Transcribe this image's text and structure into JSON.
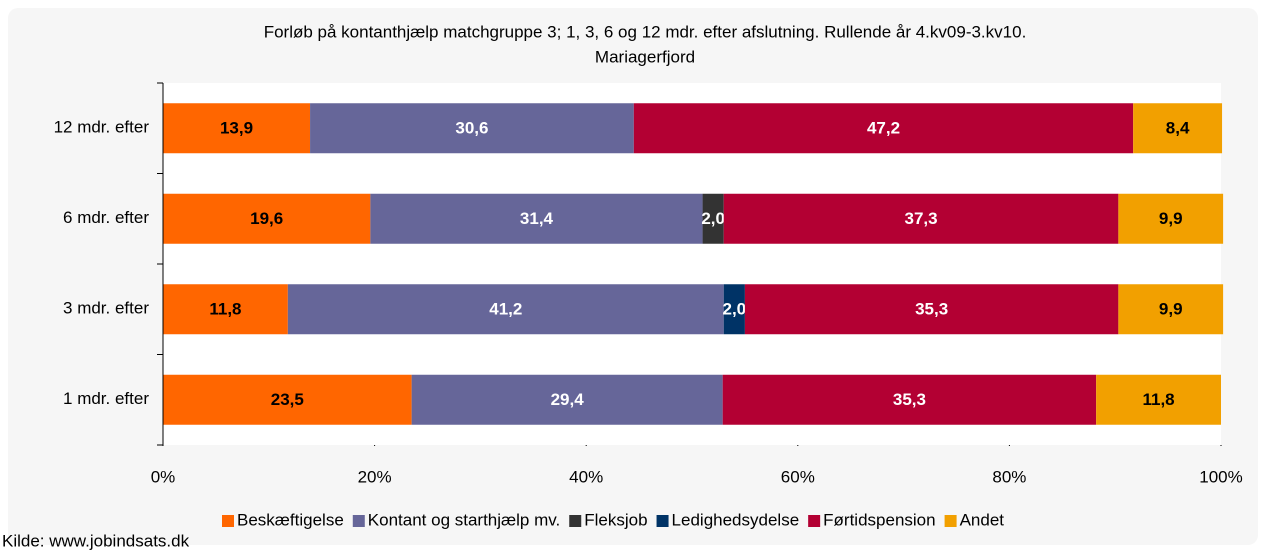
{
  "chart_data": {
    "type": "stacked_bar_horizontal",
    "title": "Forløb på kontanthjælp matchgruppe 3; 1, 3, 6 og 12 mdr. efter afslutning. Rullende år 4.kv09-3.kv10.",
    "subtitle": "Mariagerfjord",
    "source": "Kilde: www.jobindsats.dk",
    "categories": [
      "12 mdr. efter",
      "6 mdr. efter",
      "3 mdr. efter",
      "1 mdr. efter"
    ],
    "series": [
      {
        "name": "Beskæftigelse",
        "color": "#ff6600",
        "label_color": "#000000",
        "values": [
          13.9,
          19.6,
          11.8,
          23.5
        ],
        "value_labels": [
          "13,9",
          "19,6",
          "11,8",
          "23,5"
        ]
      },
      {
        "name": "Kontant og starthjælp mv.",
        "color": "#666699",
        "label_color": "#ffffff",
        "values": [
          30.6,
          31.4,
          41.2,
          29.4
        ],
        "value_labels": [
          "30,6",
          "31,4",
          "41,2",
          "29,4"
        ]
      },
      {
        "name": "Fleksjob",
        "color": "#333333",
        "label_color": "#ffffff",
        "values": [
          null,
          2.0,
          null,
          null
        ],
        "value_labels": [
          null,
          "2,0",
          null,
          null
        ]
      },
      {
        "name": "Ledighedsydelse",
        "color": "#003366",
        "label_color": "#ffffff",
        "values": [
          null,
          null,
          2.0,
          null
        ],
        "value_labels": [
          null,
          null,
          "2,0",
          null
        ]
      },
      {
        "name": "Førtidspension",
        "color": "#b30033",
        "label_color": "#ffffff",
        "values": [
          47.2,
          37.3,
          35.3,
          35.3
        ],
        "value_labels": [
          "47,2",
          "37,3",
          "35,3",
          "35,3"
        ]
      },
      {
        "name": "Andet",
        "color": "#f2a000",
        "label_color": "#000000",
        "values": [
          8.4,
          9.9,
          9.9,
          11.8
        ],
        "value_labels": [
          "8,4",
          "9,9",
          "9,9",
          "11,8"
        ]
      }
    ],
    "xlim": [
      0,
      100
    ],
    "xticks": [
      {
        "value": 0,
        "label": "0%"
      },
      {
        "value": 20,
        "label": "20%"
      },
      {
        "value": 40,
        "label": "40%"
      },
      {
        "value": 60,
        "label": "60%"
      },
      {
        "value": 80,
        "label": "80%"
      },
      {
        "value": 100,
        "label": "100%"
      }
    ],
    "legend": "bottom"
  }
}
